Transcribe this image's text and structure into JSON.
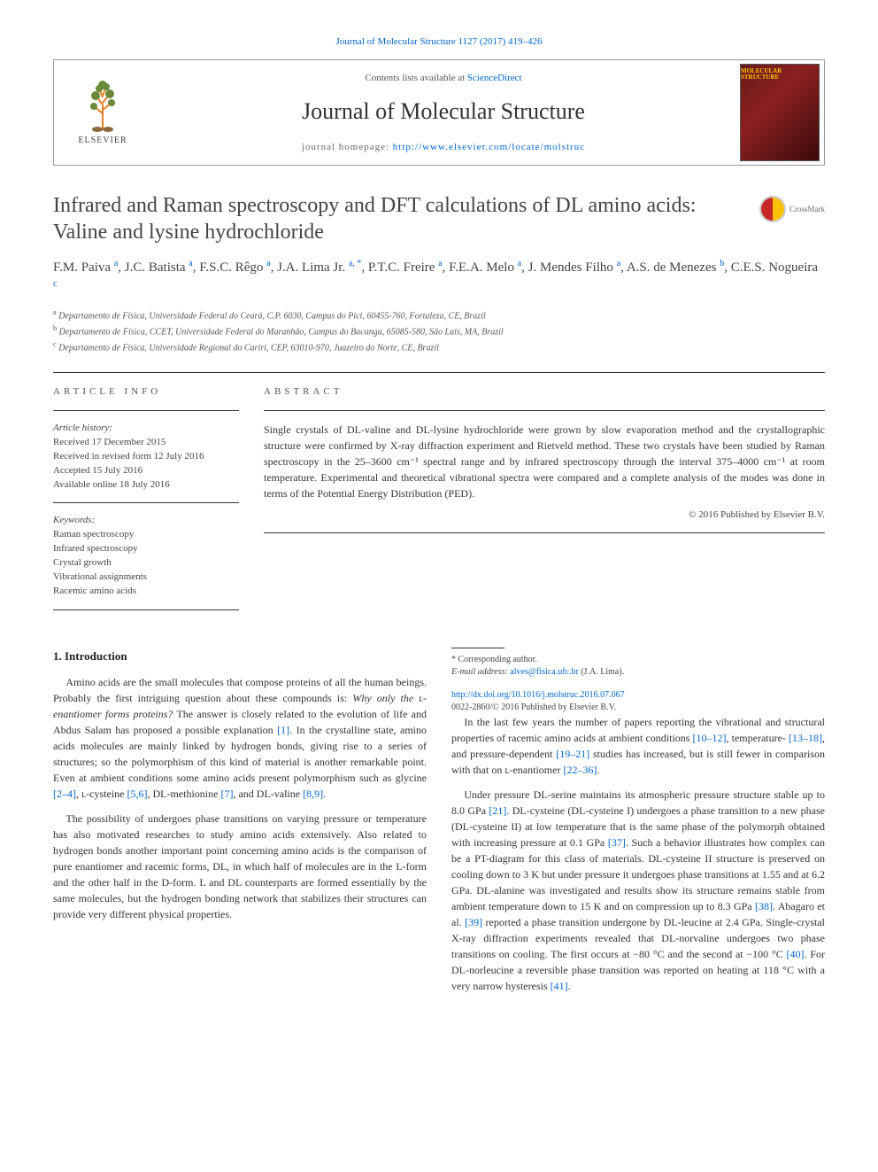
{
  "top_link": "Journal of Molecular Structure 1127 (2017) 419–426",
  "header": {
    "contents_prefix": "Contents lists available at ",
    "contents_link": "ScienceDirect",
    "journal_name": "Journal of Molecular Structure",
    "homepage_prefix": "journal homepage: ",
    "homepage_url": "http://www.elsevier.com/locate/molstruc",
    "elsevier_label": "ELSEVIER",
    "cover_label": "MOLECULAR STRUCTURE"
  },
  "crossmark_label": "CrossMark",
  "title": "Infrared and Raman spectroscopy and DFT calculations of DL amino acids: Valine and lysine hydrochloride",
  "authors_html": "F.M. Paiva <sup>a</sup>, J.C. Batista <sup>a</sup>, F.S.C. Rêgo <sup>a</sup>, J.A. Lima Jr. <sup>a, *</sup>, P.T.C. Freire <sup>a</sup>, F.E.A. Melo <sup>a</sup>, J. Mendes Filho <sup>a</sup>, A.S. de Menezes <sup>b</sup>, C.E.S. Nogueira <sup>c</sup>",
  "affiliations": {
    "a": "Departamento de Física, Universidade Federal do Ceará, C.P. 6030, Campus do Pici, 60455-760, Fortaleza, CE, Brazil",
    "b": "Departamento de Física, CCET, Universidade Federal do Maranhão, Campus do Bacanga, 65085-580, São Luís, MA, Brazil",
    "c": "Departamento de Física, Universidade Regional do Cariri, CEP, 63010-970, Juazeiro do Norte, CE, Brazil"
  },
  "info": {
    "heading": "ARTICLE INFO",
    "history_label": "Article history:",
    "received": "Received 17 December 2015",
    "revised": "Received in revised form 12 July 2016",
    "accepted": "Accepted 15 July 2016",
    "online": "Available online 18 July 2016",
    "keywords_label": "Keywords:",
    "keywords": [
      "Raman spectroscopy",
      "Infrared spectroscopy",
      "Crystal growth",
      "Vibrational assignments",
      "Racemic amino acids"
    ]
  },
  "abstract": {
    "heading": "ABSTRACT",
    "text": "Single crystals of DL-valine and DL-lysine hydrochloride were grown by slow evaporation method and the crystallographic structure were confirmed by X-ray diffraction experiment and Rietveld method. These two crystals have been studied by Raman spectroscopy in the 25–3600 cm⁻¹ spectral range and by infrared spectroscopy through the interval 375–4000 cm⁻¹ at room temperature. Experimental and theoretical vibrational spectra were compared and a complete analysis of the modes was done in terms of the Potential Energy Distribution (PED).",
    "copyright": "© 2016 Published by Elsevier B.V."
  },
  "body": {
    "section_heading": "1. Introduction",
    "p1": "Amino acids are the small molecules that compose proteins of all the human beings. Probably the first intriguing question about these compounds is: Why only the ʟ-enantiomer forms proteins? The answer is closely related to the evolution of life and Abdus Salam has proposed a possible explanation [1]. In the crystalline state, amino acids molecules are mainly linked by hydrogen bonds, giving rise to a series of structures; so the polymorphism of this kind of material is another remarkable point. Even at ambient conditions some amino acids present polymorphism such as glycine [2–4], ʟ-cysteine [5,6], DL-methionine [7], and DL-valine [8,9].",
    "p2": "The possibility of undergoes phase transitions on varying pressure or temperature has also motivated researches to study amino acids extensively. Also related to hydrogen bonds another important point concerning amino acids is the comparison of pure enantiomer and racemic forms, DL, in which half of molecules are in the L-form and the other half in the D-form. L and DL counterparts are formed essentially by the same molecules, but the hydrogen bonding network that stabilizes their structures can provide very different physical properties.",
    "p3": "In the last few years the number of papers reporting the vibrational and structural properties of racemic amino acids at ambient conditions [10–12], temperature- [13–18], and pressure-dependent [19–21] studies has increased, but is still fewer in comparison with that on ʟ-enantiomer [22–36].",
    "p4": "Under pressure DL-serine maintains its atmospheric pressure structure stable up to 8.0 GPa [21]. DL-cysteine (DL-cysteine I) undergoes a phase transition to a new phase (DL-cysteine II) at low temperature that is the same phase of the polymorph obtained with increasing pressure at 0.1 GPa [37]. Such a behavior illustrates how complex can be a PT-diagram for this class of materials. DL-cysteine II structure is preserved on cooling down to 3 K but under pressure it undergoes phase transitions at 1.55 and at 6.2 GPa. DL-alanine was investigated and results show its structure remains stable from ambient temperature down to 15 K and on compression up to 8.3 GPa [38]. Abagaro et al. [39] reported a phase transition undergone by DL-leucine at 2.4 GPa. Single-crystal X-ray diffraction experiments revealed that DL-norvaline undergoes two phase transitions on cooling. The first occurs at −80 °C and the second at −100 °C [40]. For DL-norleucine a reversible phase transition was reported on heating at 118 °C with a very narrow hysteresis [41]."
  },
  "footnotes": {
    "corresponding": "* Corresponding author.",
    "email_label": "E-mail address: ",
    "email": "alves@fisica.ufc.br",
    "email_name": " (J.A. Lima)."
  },
  "doi": {
    "url": "http://dx.doi.org/10.1016/j.molstruc.2016.07.067",
    "issn_line": "0022-2860/© 2016 Published by Elsevier B.V."
  },
  "colors": {
    "link": "#0066cc",
    "text": "#333333",
    "rule": "#333333"
  }
}
